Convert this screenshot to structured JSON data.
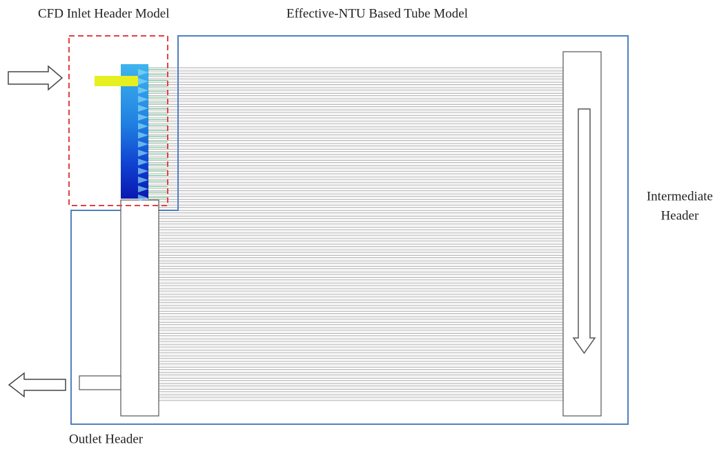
{
  "labels": {
    "cfd_inlet_header": "CFD Inlet Header Model",
    "tube_model": "Effective-NTU Based Tube Model",
    "intermediate_header": [
      "Intermediate",
      "Header"
    ],
    "outlet_header": "Outlet Header"
  }
}
